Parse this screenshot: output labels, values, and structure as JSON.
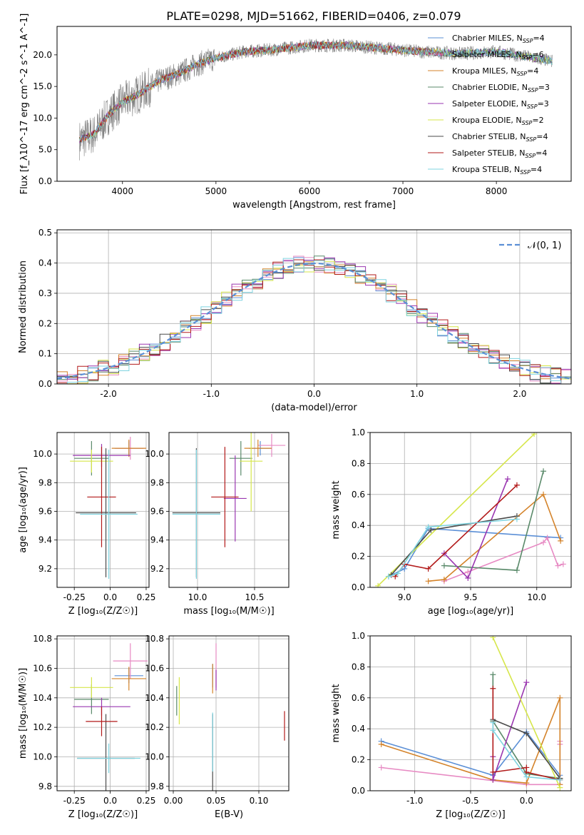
{
  "figure": {
    "title": "PLATE=0298, MJD=51662, FIBERID=0406, z=0.079"
  },
  "series_colors": [
    "#5b8fd6",
    "#e78ac3",
    "#d4832a",
    "#5a8a6a",
    "#9a36b0",
    "#d6e64a",
    "#4a4a4a",
    "#b21a1a",
    "#7fd4e0"
  ],
  "chart_data": [
    {
      "panel": "spectrum",
      "type": "line",
      "xlabel": "wavelength [Angstrom, rest frame]",
      "ylabel": "Flux [f_λ10^-17 erg cm^-2 s^-1 A^-1]",
      "xlim": [
        3300,
        8800
      ],
      "ylim": [
        0,
        24.5
      ],
      "xticks": [
        4000,
        5000,
        6000,
        7000,
        8000
      ],
      "yticks": [
        0,
        5,
        10,
        15,
        20
      ],
      "grid": false,
      "legend_position": "right",
      "legend": [
        {
          "name": "Chabrier MILES",
          "nssp": "4"
        },
        {
          "name": "Salpeter MILES",
          "nssp": "6"
        },
        {
          "name": "Kroupa MILES",
          "nssp": "4"
        },
        {
          "name": "Chabrier ELODIE",
          "nssp": "3"
        },
        {
          "name": "Salpeter ELODIE",
          "nssp": "3"
        },
        {
          "name": "Kroupa ELODIE",
          "nssp": "2"
        },
        {
          "name": "Chabrier STELIB",
          "nssp": "4"
        },
        {
          "name": "Salpeter STELIB",
          "nssp": "4"
        },
        {
          "name": "Kroupa STELIB",
          "nssp": "4"
        }
      ],
      "continuum": {
        "x": [
          3540,
          3700,
          3850,
          4000,
          4200,
          4400,
          4600,
          4800,
          5000,
          5300,
          5600,
          6000,
          6400,
          6800,
          7200,
          7600,
          8000,
          8400,
          8600
        ],
        "y": [
          6.5,
          7.5,
          10.5,
          12.5,
          14.0,
          16.0,
          17.0,
          18.5,
          19.5,
          20.5,
          20.8,
          21.5,
          21.5,
          21.0,
          20.5,
          20.2,
          20.5,
          19.5,
          19.0
        ]
      }
    },
    {
      "panel": "residuals",
      "type": "histogram",
      "xlabel": "(data-model)/error",
      "ylabel": "Normed distribution",
      "xlim": [
        -2.5,
        2.5
      ],
      "ylim": [
        0,
        0.51
      ],
      "xticks": [
        -2,
        -1,
        0,
        1,
        2
      ],
      "yticks": [
        0.0,
        0.1,
        0.2,
        0.3,
        0.4,
        0.5
      ],
      "grid": true,
      "legend_position": "top-right",
      "reference_curve": "𝒩(0, 1)"
    },
    {
      "panel": "age_vs_Z",
      "type": "scatter",
      "xlabel": "Z [log₁₀(Z/Z☉)]",
      "ylabel": "age  [log₁₀(age/yr)]",
      "xlim": [
        -0.37,
        0.27
      ],
      "ylim": [
        9.07,
        10.15
      ],
      "xticks": [
        -0.25,
        0.0,
        0.25
      ],
      "yticks": [
        9.2,
        9.4,
        9.6,
        9.8,
        10.0
      ],
      "grid": true,
      "points": [
        {
          "series": 0,
          "x": 0.13,
          "xerr": 0.1,
          "y": 10.04,
          "yerr": 0.05
        },
        {
          "series": 1,
          "x": 0.14,
          "xerr": 0.1,
          "y": 10.04,
          "yerr": 0.08
        },
        {
          "series": 2,
          "x": 0.13,
          "xerr": 0.12,
          "y": 10.04,
          "yerr": 0.06
        },
        {
          "series": 3,
          "x": -0.13,
          "xerr": 0.12,
          "y": 9.97,
          "yerr": 0.12
        },
        {
          "series": 4,
          "x": -0.06,
          "xerr": 0.2,
          "y": 9.99,
          "yerr": 0.08
        },
        {
          "series": 5,
          "x": -0.13,
          "xerr": 0.15,
          "y": 9.95,
          "yerr": 0.08
        },
        {
          "series": 6,
          "x": -0.03,
          "xerr": 0.21,
          "y": 9.59,
          "yerr": 0.45
        },
        {
          "series": 7,
          "x": -0.06,
          "xerr": 0.1,
          "y": 9.7,
          "yerr": 0.35
        },
        {
          "series": 8,
          "x": -0.01,
          "xerr": 0.2,
          "y": 9.58,
          "yerr": 0.45
        }
      ]
    },
    {
      "panel": "age_vs_mass",
      "type": "scatter",
      "xlabel": "mass [log₁₀(M/M☉)]",
      "ylabel": "",
      "xlim": [
        9.75,
        10.8
      ],
      "ylim": [
        9.07,
        10.15
      ],
      "xticks": [
        10.0,
        10.5
      ],
      "yticks": [
        9.2,
        9.4,
        9.6,
        9.8,
        10.0
      ],
      "grid": true,
      "points": [
        {
          "series": 0,
          "x": 10.55,
          "xerr": 0.1,
          "y": 10.04,
          "yerr": 0.05
        },
        {
          "series": 1,
          "x": 10.65,
          "xerr": 0.12,
          "y": 10.06,
          "yerr": 0.08
        },
        {
          "series": 2,
          "x": 10.53,
          "xerr": 0.12,
          "y": 10.04,
          "yerr": 0.06
        },
        {
          "series": 3,
          "x": 10.38,
          "xerr": 0.1,
          "y": 9.97,
          "yerr": 0.12
        },
        {
          "series": 4,
          "x": 10.33,
          "xerr": 0.1,
          "y": 9.69,
          "yerr": 0.3
        },
        {
          "series": 5,
          "x": 10.47,
          "xerr": 0.1,
          "y": 9.95,
          "yerr": 0.35
        },
        {
          "series": 6,
          "x": 9.99,
          "xerr": 0.21,
          "y": 9.59,
          "yerr": 0.45
        },
        {
          "series": 7,
          "x": 10.24,
          "xerr": 0.12,
          "y": 9.7,
          "yerr": 0.35
        },
        {
          "series": 8,
          "x": 9.99,
          "xerr": 0.21,
          "y": 9.58,
          "yerr": 0.45
        }
      ]
    },
    {
      "panel": "weight_vs_age",
      "type": "line",
      "xlabel": "age  [log₁₀(age/yr)]",
      "ylabel": "mass weight",
      "xlim": [
        8.74,
        10.26
      ],
      "ylim": [
        0,
        1.0
      ],
      "xticks": [
        9.0,
        9.5,
        10.0
      ],
      "yticks": [
        0.0,
        0.2,
        0.4,
        0.6,
        0.8,
        1.0
      ],
      "grid": true,
      "series": [
        {
          "x": [
            8.88,
            9.0,
            9.18,
            10.18
          ],
          "y": [
            0.07,
            0.12,
            0.38,
            0.32
          ]
        },
        {
          "x": [
            9.3,
            9.48,
            10.05,
            10.08,
            10.16,
            10.2
          ],
          "y": [
            0.04,
            0.1,
            0.29,
            0.32,
            0.14,
            0.15
          ]
        },
        {
          "x": [
            9.18,
            9.3,
            10.05,
            10.18
          ],
          "y": [
            0.04,
            0.05,
            0.6,
            0.3
          ]
        },
        {
          "x": [
            9.3,
            9.85,
            10.05
          ],
          "y": [
            0.14,
            0.11,
            0.75
          ]
        },
        {
          "x": [
            9.3,
            9.48,
            9.78
          ],
          "y": [
            0.22,
            0.06,
            0.7
          ]
        },
        {
          "x": [
            8.8,
            9.98
          ],
          "y": [
            0.01,
            0.99
          ]
        },
        {
          "x": [
            8.9,
            9.2,
            9.85
          ],
          "y": [
            0.08,
            0.37,
            0.46
          ]
        },
        {
          "x": [
            8.93,
            9.0,
            9.18,
            9.85
          ],
          "y": [
            0.07,
            0.15,
            0.12,
            0.66
          ]
        },
        {
          "x": [
            8.88,
            8.95,
            9.18,
            9.85
          ],
          "y": [
            0.07,
            0.09,
            0.39,
            0.44
          ]
        }
      ]
    },
    {
      "panel": "mass_vs_Z",
      "type": "scatter",
      "xlabel": "Z [log₁₀(Z/Z☉)]",
      "ylabel": "mass [log₁₀(M/M☉)]",
      "xlim": [
        -0.37,
        0.27
      ],
      "ylim": [
        9.77,
        10.82
      ],
      "xticks": [
        -0.25,
        0.0,
        0.25
      ],
      "yticks": [
        9.8,
        10.0,
        10.2,
        10.4,
        10.6,
        10.8
      ],
      "grid": true,
      "points": [
        {
          "series": 0,
          "x": 0.13,
          "xerr": 0.1,
          "y": 10.55,
          "yerr": 0.05
        },
        {
          "series": 1,
          "x": 0.14,
          "xerr": 0.12,
          "y": 10.65,
          "yerr": 0.12
        },
        {
          "series": 2,
          "x": 0.13,
          "xerr": 0.12,
          "y": 10.53,
          "yerr": 0.08
        },
        {
          "series": 3,
          "x": -0.13,
          "xerr": 0.12,
          "y": 10.39,
          "yerr": 0.1
        },
        {
          "series": 4,
          "x": -0.06,
          "xerr": 0.2,
          "y": 10.34,
          "yerr": 0.06
        },
        {
          "series": 5,
          "x": -0.13,
          "xerr": 0.15,
          "y": 10.47,
          "yerr": 0.07
        },
        {
          "series": 6,
          "x": -0.03,
          "xerr": 0.2,
          "y": 9.99,
          "yerr": 0.3
        },
        {
          "series": 7,
          "x": -0.06,
          "xerr": 0.11,
          "y": 10.24,
          "yerr": 0.1
        },
        {
          "series": 8,
          "x": -0.01,
          "xerr": 0.22,
          "y": 9.99,
          "yerr": 0.1
        }
      ]
    },
    {
      "panel": "mass_vs_ebv",
      "type": "scatter",
      "xlabel": "E(B-V)",
      "ylabel": "",
      "xlim": [
        -0.005,
        0.135
      ],
      "ylim": [
        9.77,
        10.82
      ],
      "xticks": [
        0.0,
        0.05,
        0.1
      ],
      "yticks": [
        9.8,
        10.0,
        10.2,
        10.4,
        10.6,
        10.8
      ],
      "grid": true,
      "points": [
        {
          "series": 0,
          "x": 0.046,
          "y": 10.55,
          "yerr": 0.08
        },
        {
          "series": 1,
          "x": 0.05,
          "y": 10.62,
          "yerr": 0.15
        },
        {
          "series": 2,
          "x": 0.046,
          "y": 10.53,
          "yerr": 0.1
        },
        {
          "series": 3,
          "x": 0.004,
          "y": 10.38,
          "yerr": 0.1
        },
        {
          "series": 4,
          "x": 0.05,
          "y": 10.52,
          "yerr": 0.07
        },
        {
          "series": 5,
          "x": 0.007,
          "y": 10.38,
          "yerr": 0.16
        },
        {
          "series": 6,
          "x": 0.046,
          "y": 9.99,
          "yerr": 0.3
        },
        {
          "series": 7,
          "x": 0.13,
          "y": 10.21,
          "yerr": 0.1
        },
        {
          "series": 8,
          "x": 0.046,
          "y": 10.1,
          "yerr": 0.2
        }
      ]
    },
    {
      "panel": "weight_vs_Z",
      "type": "line",
      "xlabel": "Z [log₁₀(Z/Z☉)]",
      "ylabel": "mass weight",
      "xlim": [
        -1.4,
        0.4
      ],
      "ylim": [
        0,
        1.0
      ],
      "xticks": [
        -1.0,
        -0.5,
        0.0
      ],
      "yticks": [
        0.0,
        0.2,
        0.4,
        0.6,
        0.8,
        1.0
      ],
      "grid": true,
      "series": [
        {
          "x": [
            -1.3,
            -0.3,
            0.0,
            0.3
          ],
          "y": [
            0.32,
            0.1,
            0.38,
            0.1
          ]
        },
        {
          "x": [
            -1.3,
            0.0,
            0.3,
            0.3,
            0.3
          ],
          "y": [
            0.15,
            0.04,
            0.04,
            0.3,
            0.32
          ]
        },
        {
          "x": [
            -1.3,
            -0.3,
            0.0,
            0.3,
            0.3
          ],
          "y": [
            0.3,
            0.07,
            0.05,
            0.6,
            0.04
          ]
        },
        {
          "x": [
            -0.3,
            -0.3,
            0.0,
            0.3
          ],
          "y": [
            0.75,
            0.45,
            0.11,
            0.08
          ]
        },
        {
          "x": [
            -0.3,
            -0.3,
            0.0
          ],
          "y": [
            0.22,
            0.07,
            0.7
          ]
        },
        {
          "x": [
            -0.3,
            0.3
          ],
          "y": [
            0.99,
            0.02
          ]
        },
        {
          "x": [
            -0.3,
            0.0,
            0.3
          ],
          "y": [
            0.46,
            0.37,
            0.08
          ]
        },
        {
          "x": [
            -0.3,
            -0.3,
            0.0,
            0.0,
            0.3
          ],
          "y": [
            0.66,
            0.12,
            0.15,
            0.12,
            0.07
          ]
        },
        {
          "x": [
            -0.3,
            -0.3,
            0.0,
            0.3
          ],
          "y": [
            0.44,
            0.39,
            0.09,
            0.07
          ]
        }
      ]
    }
  ]
}
